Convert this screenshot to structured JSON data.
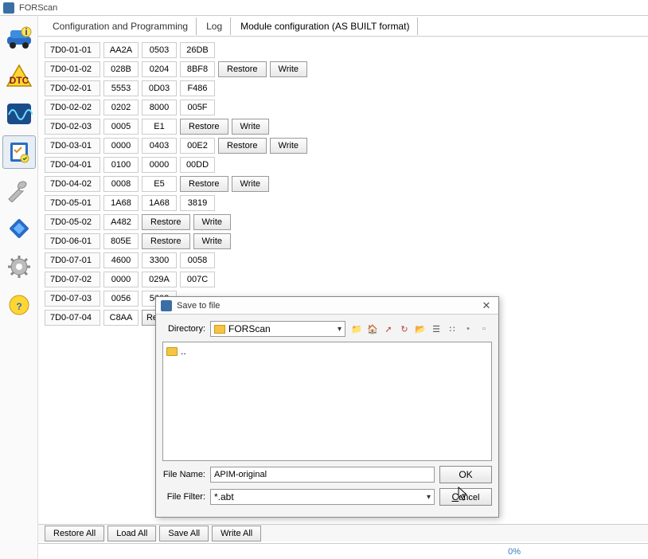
{
  "app": {
    "title": "FORScan"
  },
  "tabs": {
    "config": "Configuration and Programming",
    "log": "Log",
    "module": "Module configuration (AS BUILT format)"
  },
  "rows": [
    {
      "addr": "7D0-01-01",
      "cells": [
        "AA2A",
        "0503",
        "26DB"
      ],
      "restore": "Restore",
      "write": "Write",
      "btns": false
    },
    {
      "addr": "7D0-01-02",
      "cells": [
        "028B",
        "0204",
        "8BF8"
      ],
      "restore": "Restore",
      "write": "Write",
      "btns": true
    },
    {
      "addr": "7D0-02-01",
      "cells": [
        "5553",
        "0D03",
        "F486"
      ],
      "btns": false
    },
    {
      "addr": "7D0-02-02",
      "cells": [
        "0202",
        "8000",
        "005F"
      ],
      "btns": false
    },
    {
      "addr": "7D0-02-03",
      "cells": [
        "0005",
        "E1"
      ],
      "restore": "Restore",
      "write": "Write",
      "btns": true
    },
    {
      "addr": "7D0-03-01",
      "cells": [
        "0000",
        "0403",
        "00E2"
      ],
      "restore": "Restore",
      "write": "Write",
      "btns": true
    },
    {
      "addr": "7D0-04-01",
      "cells": [
        "0100",
        "0000",
        "00DD"
      ],
      "btns": false
    },
    {
      "addr": "7D0-04-02",
      "cells": [
        "0008",
        "E5"
      ],
      "restore": "Restore",
      "write": "Write",
      "btns": true
    },
    {
      "addr": "7D0-05-01",
      "cells": [
        "1A68",
        "1A68",
        "3819"
      ],
      "btns": false
    },
    {
      "addr": "7D0-05-02",
      "cells": [
        "A482"
      ],
      "restore": "Restore",
      "write": "Write",
      "btns": true
    },
    {
      "addr": "7D0-06-01",
      "cells": [
        "805E"
      ],
      "restore": "Restore",
      "write": "Write",
      "btns": true
    },
    {
      "addr": "7D0-07-01",
      "cells": [
        "4600",
        "3300",
        "0058"
      ],
      "btns": false
    },
    {
      "addr": "7D0-07-02",
      "cells": [
        "0000",
        "029A",
        "007C"
      ],
      "btns": false
    },
    {
      "addr": "7D0-07-03",
      "cells": [
        "0056",
        "5603"
      ],
      "btns": false
    },
    {
      "addr": "7D0-07-04",
      "cells": [
        "C8AA"
      ],
      "restore": "Re",
      "btns_partial": true
    }
  ],
  "bottom": {
    "restore_all": "Restore All",
    "load_all": "Load All",
    "save_all": "Save All",
    "write_all": "Write All"
  },
  "progress": {
    "pct": "0%"
  },
  "dialog": {
    "title": "Save to file",
    "directory_label": "Directory:",
    "directory_value": "FORScan",
    "listing_parent": "..",
    "filename_label": "File Name:",
    "filename_value": "APIM-original",
    "filter_label": "File Filter:",
    "filter_value": "*.abt",
    "ok": "OK",
    "cancel": "Cancel"
  },
  "restore_label": "Restore",
  "write_label": "Write"
}
